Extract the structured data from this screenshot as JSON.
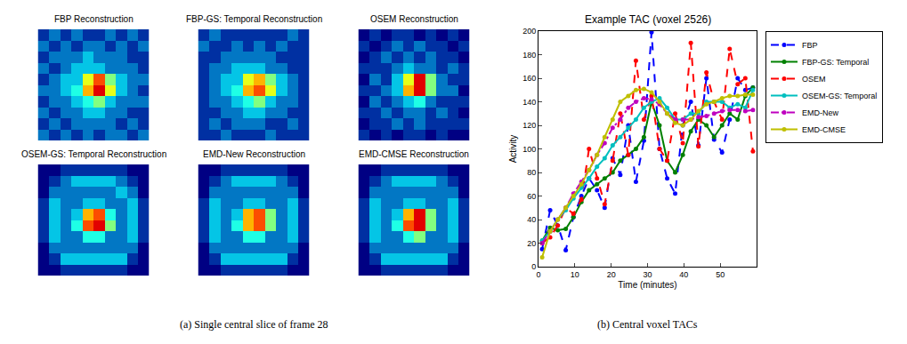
{
  "chart_data": [
    {
      "type": "heatmap",
      "title": "FBP Reconstruction",
      "color": "Jet",
      "zlim": [
        0,
        10
      ],
      "tick_labels": false,
      "cells": [
        [
          1,
          2,
          1,
          2,
          1,
          1,
          2,
          1,
          2,
          1
        ],
        [
          2,
          1,
          2,
          1,
          2,
          2,
          1,
          2,
          1,
          2
        ],
        [
          1,
          2,
          2,
          2,
          3,
          2,
          2,
          2,
          1,
          1
        ],
        [
          2,
          1,
          2,
          3,
          3,
          3,
          2,
          2,
          2,
          1
        ],
        [
          1,
          2,
          3,
          3,
          6,
          8,
          5,
          3,
          2,
          2
        ],
        [
          2,
          2,
          3,
          4,
          7,
          9,
          6,
          3,
          2,
          1
        ],
        [
          1,
          2,
          2,
          3,
          4,
          5,
          3,
          2,
          2,
          2
        ],
        [
          2,
          1,
          2,
          2,
          3,
          3,
          2,
          2,
          1,
          1
        ],
        [
          1,
          2,
          1,
          2,
          2,
          2,
          2,
          1,
          2,
          1
        ],
        [
          2,
          1,
          2,
          1,
          2,
          1,
          2,
          2,
          1,
          2
        ]
      ]
    },
    {
      "type": "heatmap",
      "title": "FBP-GS: Temporal Reconstruction",
      "color": "Jet",
      "zlim": [
        0,
        10
      ],
      "tick_labels": false,
      "cells": [
        [
          1,
          2,
          1,
          1,
          1,
          1,
          1,
          1,
          2,
          1
        ],
        [
          2,
          1,
          1,
          2,
          1,
          2,
          1,
          2,
          1,
          1
        ],
        [
          1,
          1,
          2,
          2,
          2,
          2,
          2,
          1,
          1,
          1
        ],
        [
          1,
          2,
          2,
          3,
          3,
          3,
          2,
          2,
          1,
          1
        ],
        [
          1,
          2,
          3,
          3,
          6,
          7,
          5,
          3,
          2,
          1
        ],
        [
          1,
          2,
          3,
          4,
          7,
          8,
          6,
          3,
          2,
          1
        ],
        [
          1,
          2,
          2,
          3,
          4,
          5,
          3,
          2,
          2,
          1
        ],
        [
          1,
          1,
          2,
          2,
          3,
          3,
          2,
          2,
          1,
          1
        ],
        [
          1,
          2,
          1,
          2,
          2,
          2,
          1,
          1,
          2,
          1
        ],
        [
          1,
          1,
          2,
          1,
          1,
          1,
          2,
          1,
          1,
          1
        ]
      ]
    },
    {
      "type": "heatmap",
      "title": "OSEM Reconstruction",
      "color": "Jet",
      "zlim": [
        0,
        10
      ],
      "tick_labels": false,
      "cells": [
        [
          0,
          1,
          0,
          1,
          1,
          0,
          1,
          0,
          1,
          0
        ],
        [
          1,
          0,
          1,
          2,
          1,
          2,
          1,
          1,
          0,
          1
        ],
        [
          0,
          1,
          2,
          1,
          2,
          1,
          2,
          1,
          1,
          0
        ],
        [
          1,
          1,
          1,
          2,
          3,
          2,
          2,
          1,
          2,
          1
        ],
        [
          0,
          2,
          1,
          3,
          6,
          9,
          5,
          2,
          1,
          1
        ],
        [
          1,
          1,
          2,
          3,
          7,
          9,
          5,
          2,
          2,
          0
        ],
        [
          0,
          2,
          1,
          2,
          3,
          4,
          2,
          1,
          1,
          1
        ],
        [
          1,
          1,
          2,
          1,
          2,
          2,
          1,
          2,
          1,
          0
        ],
        [
          0,
          1,
          1,
          2,
          1,
          2,
          1,
          1,
          1,
          1
        ],
        [
          1,
          0,
          1,
          0,
          1,
          1,
          0,
          1,
          0,
          0
        ]
      ]
    },
    {
      "type": "heatmap",
      "title": "OSEM-GS: Temporal Reconstruction",
      "color": "Jet",
      "zlim": [
        0,
        10
      ],
      "tick_labels": false,
      "cells": [
        [
          0,
          0,
          1,
          1,
          1,
          1,
          1,
          1,
          0,
          0
        ],
        [
          0,
          1,
          2,
          3,
          3,
          3,
          3,
          2,
          1,
          0
        ],
        [
          0,
          2,
          2,
          2,
          2,
          2,
          2,
          3,
          2,
          0
        ],
        [
          1,
          3,
          2,
          2,
          3,
          3,
          2,
          2,
          3,
          1
        ],
        [
          1,
          3,
          2,
          3,
          7,
          8,
          4,
          2,
          3,
          1
        ],
        [
          1,
          3,
          2,
          4,
          8,
          9,
          5,
          2,
          3,
          1
        ],
        [
          1,
          3,
          2,
          2,
          4,
          4,
          2,
          2,
          3,
          1
        ],
        [
          0,
          2,
          2,
          2,
          2,
          2,
          2,
          2,
          2,
          0
        ],
        [
          0,
          1,
          3,
          3,
          3,
          3,
          3,
          3,
          1,
          0
        ],
        [
          0,
          0,
          1,
          1,
          1,
          1,
          1,
          1,
          0,
          0
        ]
      ]
    },
    {
      "type": "heatmap",
      "title": "EMD-New Reconstruction",
      "color": "Jet",
      "zlim": [
        0,
        10
      ],
      "tick_labels": false,
      "cells": [
        [
          0,
          0,
          1,
          1,
          1,
          1,
          1,
          1,
          0,
          0
        ],
        [
          0,
          1,
          2,
          3,
          3,
          3,
          3,
          2,
          1,
          0
        ],
        [
          0,
          2,
          2,
          2,
          2,
          2,
          2,
          2,
          2,
          0
        ],
        [
          1,
          3,
          2,
          2,
          3,
          3,
          2,
          2,
          3,
          1
        ],
        [
          1,
          3,
          2,
          3,
          7,
          8,
          5,
          2,
          3,
          1
        ],
        [
          1,
          3,
          2,
          4,
          7,
          8,
          5,
          2,
          3,
          1
        ],
        [
          1,
          3,
          2,
          2,
          4,
          4,
          2,
          2,
          3,
          1
        ],
        [
          0,
          2,
          2,
          2,
          2,
          2,
          2,
          2,
          2,
          0
        ],
        [
          0,
          1,
          3,
          3,
          3,
          3,
          3,
          3,
          1,
          0
        ],
        [
          0,
          0,
          1,
          1,
          1,
          1,
          1,
          1,
          0,
          0
        ]
      ]
    },
    {
      "type": "heatmap",
      "title": "EMD-CMSE Reconstruction",
      "color": "Jet",
      "zlim": [
        0,
        10
      ],
      "tick_labels": false,
      "cells": [
        [
          0,
          0,
          1,
          1,
          1,
          1,
          1,
          1,
          0,
          0
        ],
        [
          0,
          1,
          2,
          3,
          3,
          3,
          3,
          2,
          1,
          0
        ],
        [
          0,
          2,
          2,
          2,
          2,
          2,
          2,
          2,
          2,
          0
        ],
        [
          1,
          3,
          2,
          2,
          3,
          3,
          2,
          2,
          3,
          1
        ],
        [
          1,
          3,
          2,
          3,
          7,
          9,
          5,
          2,
          3,
          1
        ],
        [
          1,
          3,
          2,
          4,
          8,
          9,
          5,
          2,
          3,
          1
        ],
        [
          1,
          3,
          2,
          2,
          4,
          5,
          2,
          2,
          3,
          1
        ],
        [
          0,
          2,
          2,
          2,
          2,
          2,
          2,
          2,
          2,
          0
        ],
        [
          0,
          1,
          3,
          3,
          3,
          3,
          3,
          3,
          1,
          0
        ],
        [
          0,
          0,
          1,
          1,
          1,
          1,
          1,
          1,
          0,
          0
        ]
      ]
    },
    {
      "type": "line",
      "title": "Example TAC (voxel 2526)",
      "x_label": "Time (minutes)",
      "y_label": "Activity",
      "x": [
        1,
        3.2,
        5.3,
        7.5,
        9.6,
        11.8,
        13.9,
        16.1,
        18.2,
        20.4,
        22.5,
        24.7,
        26.8,
        29,
        31.1,
        33.3,
        35.4,
        37.6,
        39.7,
        41.9,
        44,
        46.2,
        48.3,
        50.5,
        52.6,
        54.8,
        56.9,
        59
      ],
      "xlim": [
        0,
        60
      ],
      "xticks": [
        0,
        10,
        20,
        30,
        40,
        50
      ],
      "ylim": [
        0,
        200
      ],
      "yticks": [
        0,
        20,
        40,
        60,
        80,
        100,
        120,
        140,
        160,
        180,
        200
      ],
      "grid": false,
      "legend": "right",
      "series": [
        {
          "name": "FBP",
          "color": "#0000ff",
          "line_style": "dash",
          "marker": "circle",
          "values": [
            15,
            48,
            35,
            14,
            42,
            60,
            75,
            65,
            50,
            92,
            78,
            120,
            72,
            107,
            199,
            100,
            75,
            62,
            120,
            140,
            103,
            160,
            108,
            97,
            125,
            160,
            150,
            152
          ]
        },
        {
          "name": "FBP-GS: Temporal",
          "color": "#008000",
          "line_style": "solid",
          "marker": "circle",
          "values": [
            22,
            33,
            31,
            32,
            42,
            55,
            65,
            70,
            75,
            80,
            90,
            95,
            100,
            110,
            140,
            120,
            90,
            80,
            95,
            115,
            125,
            120,
            110,
            120,
            130,
            125,
            145,
            152
          ]
        },
        {
          "name": "OSEM",
          "color": "#ff0000",
          "line_style": "dash",
          "marker": "circle",
          "values": [
            20,
            25,
            35,
            50,
            45,
            57,
            100,
            75,
            53,
            90,
            130,
            95,
            175,
            125,
            145,
            100,
            90,
            130,
            105,
            190,
            102,
            165,
            140,
            125,
            185,
            155,
            160,
            98
          ]
        },
        {
          "name": "OSEM-GS: Temporal",
          "color": "#00bfbf",
          "line_style": "solid",
          "marker": "circle",
          "values": [
            22,
            30,
            40,
            48,
            58,
            67,
            75,
            85,
            92,
            103,
            110,
            118,
            125,
            135,
            140,
            143,
            135,
            125,
            125,
            130,
            130,
            140,
            140,
            140,
            135,
            138,
            135,
            150
          ]
        },
        {
          "name": "EMD-New",
          "color": "#bf00bf",
          "line_style": "dashdot",
          "marker": "circle",
          "values": [
            20,
            30,
            40,
            50,
            62,
            72,
            82,
            95,
            105,
            118,
            125,
            135,
            140,
            143,
            142,
            138,
            130,
            125,
            125,
            125,
            127,
            128,
            130,
            132,
            133,
            133,
            132,
            133
          ]
        },
        {
          "name": "EMD-CMSE",
          "color": "#bfbf00",
          "line_style": "solid",
          "marker": "circle",
          "values": [
            8,
            30,
            40,
            50,
            60,
            70,
            82,
            95,
            110,
            125,
            140,
            145,
            150,
            151,
            148,
            140,
            130,
            122,
            120,
            125,
            132,
            138,
            140,
            143,
            145,
            145,
            146,
            146
          ]
        }
      ]
    }
  ],
  "captions": [
    "(a) Single central slice of frame 28",
    "(b) Central voxel TACs"
  ]
}
